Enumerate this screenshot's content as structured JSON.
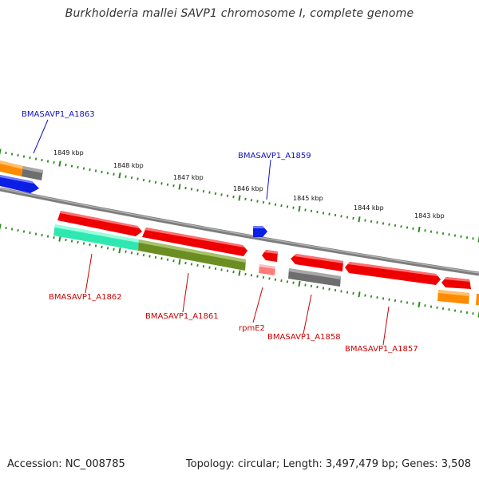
{
  "title": "Burkholderia mallei SAVP1 chromosome I, complete genome",
  "footer": {
    "accession": "Accession: NC_008785",
    "summary": "Topology: circular; Length: 3,497,479 bp; Genes: 3,508"
  },
  "colors": {
    "backbone": "#7d7d7d",
    "tick": "#2e8b1e",
    "gene_label_top": "#1010c0",
    "gene_label_bottom": "#cc0000",
    "red": "#ee0000",
    "blue": "#0a1ee6",
    "orange": "#ff8c00",
    "gray": "#6e6e6e",
    "teal": "#2fe8b0",
    "olive": "#6b8e23",
    "pink": "#ff7a7a"
  },
  "ruler": {
    "labels": [
      "1849 kbp",
      "1848 kbp",
      "1847 kbp",
      "1846 kbp",
      "1845 kbp",
      "1844 kbp",
      "1843 kbp"
    ]
  },
  "gene_labels": {
    "top": [
      "BMASAVP1_A1863",
      "BMASAVP1_A1859"
    ],
    "bottom": [
      "BMASAVP1_A1862",
      "BMASAVP1_A1861",
      "rpmE2",
      "BMASAVP1_A1858",
      "BMASAVP1_A1857"
    ]
  }
}
